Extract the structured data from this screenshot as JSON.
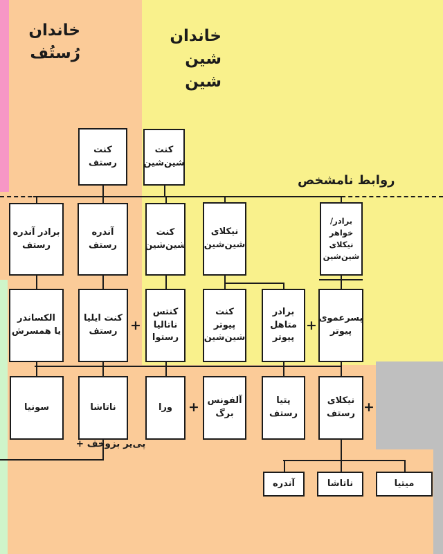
{
  "titles": {
    "rostov": "خاندان\nرُستُف",
    "shinshin": "خاندان\nشین شین"
  },
  "annotations": {
    "unknown_relations": "روابط نامشخص",
    "pierre_marriage": "پی‌یر بزوخف +",
    "plus": "+"
  },
  "nodes": [
    {
      "id": "count-rostov",
      "label": "کنت\nرستف"
    },
    {
      "id": "count-shinshin-elder",
      "label": "کنت\nشین‌شین"
    },
    {
      "id": "brother-of-andre-rostov",
      "label": "برادر آندره\nرستف"
    },
    {
      "id": "andre-rostov",
      "label": "آندره\nرستف"
    },
    {
      "id": "count-shinshin",
      "label": "کنت\nشین‌شین"
    },
    {
      "id": "nikolai-shinshin",
      "label": "نیکلای\nشین‌شین"
    },
    {
      "id": "sibling-of-nikolai-shinshin",
      "label": "برادر/خواهر\nنیکلای\nشین‌شین"
    },
    {
      "id": "alexander-or-his-wife",
      "label": "الکساندر\nیا همسرش"
    },
    {
      "id": "count-ilya-rostov",
      "label": "کنت ایلیا\nرستف"
    },
    {
      "id": "countess-natalia-rostova",
      "label": "کنتس\nناتالیا\nرستوا"
    },
    {
      "id": "count-pyotr-shinshin",
      "label": "کنت\nپیوتر\nشین‌شین"
    },
    {
      "id": "married-brother-of-pyotr",
      "label": "برادر\nمتاهل\nپیوتر"
    },
    {
      "id": "cousin-of-pyotr",
      "label": "پسرعموی\nپیوتر"
    },
    {
      "id": "sonya",
      "label": "سونیا"
    },
    {
      "id": "natasha",
      "label": "ناتاشا"
    },
    {
      "id": "vera",
      "label": "ورا"
    },
    {
      "id": "alphonse-berg",
      "label": "آلفونس\nبرگ"
    },
    {
      "id": "petya-rostov",
      "label": "پتیا\nرستف"
    },
    {
      "id": "nikolai-rostov",
      "label": "نیکلای\nرستف"
    },
    {
      "id": "andre-child",
      "label": "آندره"
    },
    {
      "id": "natasha-child",
      "label": "ناتاشا"
    },
    {
      "id": "mitya",
      "label": "میتیا"
    }
  ],
  "colors": {
    "orange": "#FBCB98",
    "yellow": "#F9F18C",
    "pink": "#F797C6",
    "green": "#CFF5CA",
    "gray": "#BFBFBF",
    "ink": "#1B1B1B",
    "box_fill": "#FFFFFF"
  }
}
